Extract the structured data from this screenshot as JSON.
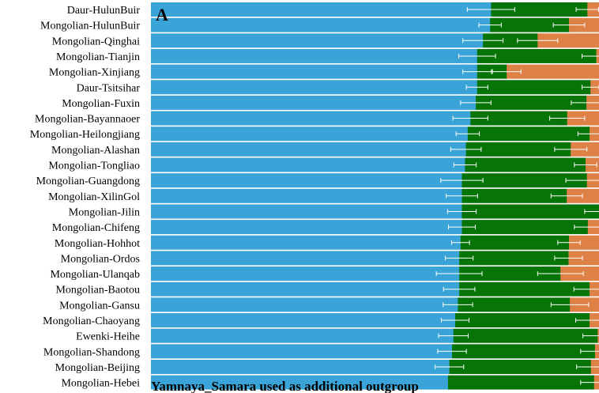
{
  "chart_data": {
    "type": "bar",
    "orientation": "horizontal",
    "stacked": true,
    "panel_label": "A",
    "annotation": "Yamnaya_Samara used as additional outgroup",
    "xlim": [
      0,
      1
    ],
    "colors": [
      "#3aa4d8",
      "#077407",
      "#de8146"
    ],
    "categories": [
      "Daur-HulunBuir",
      "Mongolian-HulunBuir",
      "Mongolian-Qinghai",
      "Mongolian-Tianjin",
      "Mongolian-Xinjiang",
      "Daur-Tsitsihar",
      "Mongolian-Fuxin",
      "Mongolian-Bayannaoer",
      "Mongolian-Heilongjiang",
      "Mongolian-Alashan",
      "Mongolian-Tongliao",
      "Mongolian-Guangdong",
      "Mongolian-XilinGol",
      "Mongolian-Jilin",
      "Mongolian-Chifeng",
      "Mongolian-Hohhot",
      "Mongolian-Ordos",
      "Mongolian-Ulanqab",
      "Mongolian-Baotou",
      "Mongolian-Gansu",
      "Mongolian-Chaoyang",
      "Ewenki-Heihe",
      "Mongolian-Shandong",
      "Mongolian-Beijing",
      "Mongolian-Hebei"
    ],
    "series": [
      {
        "values": [
          0.759,
          0.757,
          0.741,
          0.728,
          0.728,
          0.728,
          0.725,
          0.713,
          0.707,
          0.703,
          0.701,
          0.694,
          0.694,
          0.694,
          0.694,
          0.691,
          0.688,
          0.688,
          0.688,
          0.685,
          0.679,
          0.675,
          0.672,
          0.666,
          0.663
        ]
      },
      {
        "values": [
          0.215,
          0.176,
          0.122,
          0.266,
          0.066,
          0.253,
          0.247,
          0.216,
          0.272,
          0.234,
          0.269,
          0.279,
          0.234,
          0.306,
          0.281,
          0.242,
          0.244,
          0.226,
          0.291,
          0.25,
          0.3,
          0.322,
          0.319,
          0.316,
          0.326
        ]
      },
      {
        "values": [
          0.026,
          0.067,
          0.137,
          0.006,
          0.206,
          0.019,
          0.028,
          0.071,
          0.021,
          0.063,
          0.03,
          0.027,
          0.072,
          0.0,
          0.025,
          0.067,
          0.068,
          0.086,
          0.021,
          0.065,
          0.021,
          0.003,
          0.009,
          0.018,
          0.011
        ]
      }
    ],
    "error_bars": {
      "series_1": [
        0.053,
        0.025,
        0.045,
        0.041,
        0.032,
        0.024,
        0.034,
        0.039,
        0.026,
        0.034,
        0.025,
        0.047,
        0.035,
        0.032,
        0.03,
        0.02,
        0.031,
        0.051,
        0.035,
        0.033,
        0.031,
        0.033,
        0.032,
        0.032,
        0.0
      ],
      "series_2": [
        0.025,
        0.035,
        0.045,
        0.032,
        0.032,
        0.019,
        0.034,
        0.039,
        0.026,
        0.036,
        0.025,
        0.047,
        0.035,
        0.032,
        0.03,
        0.025,
        0.031,
        0.051,
        0.035,
        0.042,
        0.031,
        0.033,
        0.032,
        0.032,
        0.03
      ]
    }
  }
}
